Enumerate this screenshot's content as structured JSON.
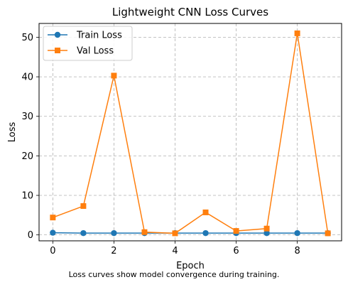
{
  "chart_data": {
    "type": "line",
    "title": "Lightweight CNN Loss Curves",
    "xlabel": "Epoch",
    "ylabel": "Loss",
    "caption": "Loss curves show model convergence during training.",
    "x": [
      0,
      1,
      2,
      3,
      4,
      5,
      6,
      7,
      8,
      9
    ],
    "xlim": [
      -0.45,
      9.45
    ],
    "ylim": [
      -1.5,
      53.5
    ],
    "xticks": [
      0,
      2,
      4,
      6,
      8
    ],
    "yticks": [
      0,
      10,
      20,
      30,
      40,
      50
    ],
    "grid": true,
    "legend_position": "top-left",
    "series": [
      {
        "name": "Train Loss",
        "marker": "circle",
        "color": "#1f77b4",
        "values": [
          0.55,
          0.45,
          0.45,
          0.45,
          0.45,
          0.45,
          0.45,
          0.45,
          0.45,
          0.45
        ]
      },
      {
        "name": "Val Loss",
        "marker": "square",
        "color": "#ff7f0e",
        "values": [
          4.4,
          7.3,
          40.3,
          0.7,
          0.4,
          5.7,
          1.0,
          1.6,
          51.0,
          0.4
        ]
      }
    ]
  }
}
